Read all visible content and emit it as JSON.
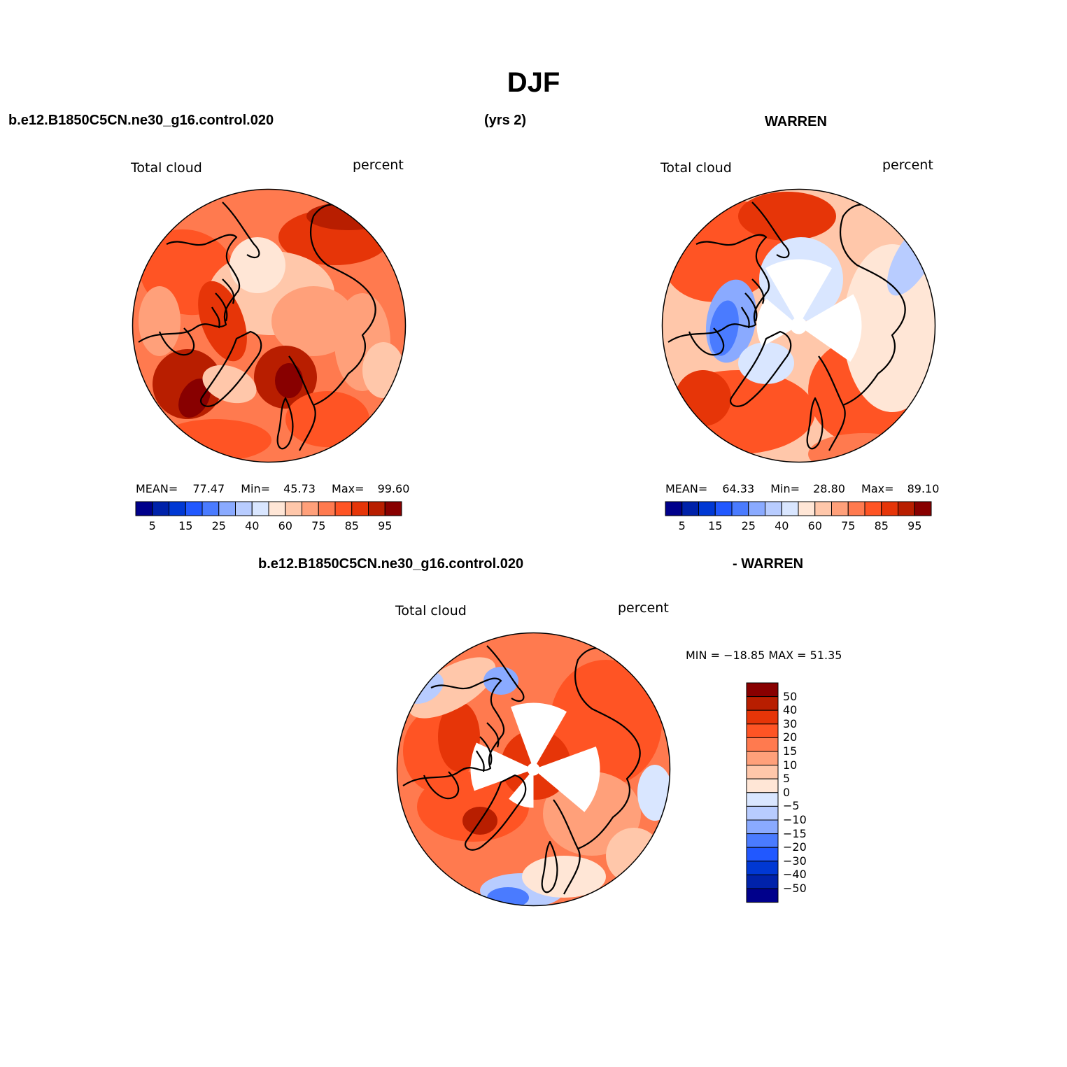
{
  "title": "DJF",
  "header": {
    "case_name": "b.e12.B1850C5CN.ne30_g16.control.020",
    "years": "(yrs 2)",
    "obs_name": "WARREN",
    "diff_case": "b.e12.B1850C5CN.ne30_g16.control.020",
    "diff_obs": "- WARREN"
  },
  "panels": [
    {
      "id": "model",
      "variable_label": "Total cloud",
      "units_label": "percent",
      "stats": {
        "mean_label": "MEAN=",
        "mean": "77.47",
        "min_label": "Min=",
        "min": "45.73",
        "max_label": "Max=",
        "max": "99.60"
      }
    },
    {
      "id": "obs",
      "variable_label": "Total cloud",
      "units_label": "percent",
      "stats": {
        "mean_label": "MEAN=",
        "mean": "64.33",
        "min_label": "Min=",
        "min": "28.80",
        "max_label": "Max=",
        "max": "89.10"
      }
    },
    {
      "id": "diff",
      "variable_label": "Total cloud",
      "units_label": "percent",
      "stats_text": "MIN = −18.85 MAX =  51.35"
    }
  ],
  "abs_colorbar": {
    "colors": [
      "#00008b",
      "#0022aa",
      "#0038d4",
      "#2158ff",
      "#4a7bff",
      "#8aaaff",
      "#b8ccff",
      "#d9e6ff",
      "#ffe6d6",
      "#ffc7aa",
      "#ffa07a",
      "#ff7a4f",
      "#ff5424",
      "#e63508",
      "#b81e00",
      "#880000"
    ],
    "tick_labels": [
      "5",
      "15",
      "25",
      "40",
      "60",
      "75",
      "85",
      "95"
    ]
  },
  "diff_colorbar": {
    "colors": [
      "#880000",
      "#b81e00",
      "#e63508",
      "#ff5424",
      "#ff7a4f",
      "#ffa07a",
      "#ffc7aa",
      "#ffe6d6",
      "#d9e6ff",
      "#b8ccff",
      "#8aaaff",
      "#4a7bff",
      "#2158ff",
      "#0038d4",
      "#0022aa",
      "#00008b"
    ],
    "tick_labels": [
      "50",
      "40",
      "30",
      "20",
      "15",
      "10",
      "5",
      "0",
      "−5",
      "−10",
      "−15",
      "−20",
      "−30",
      "−40",
      "−50"
    ]
  }
}
